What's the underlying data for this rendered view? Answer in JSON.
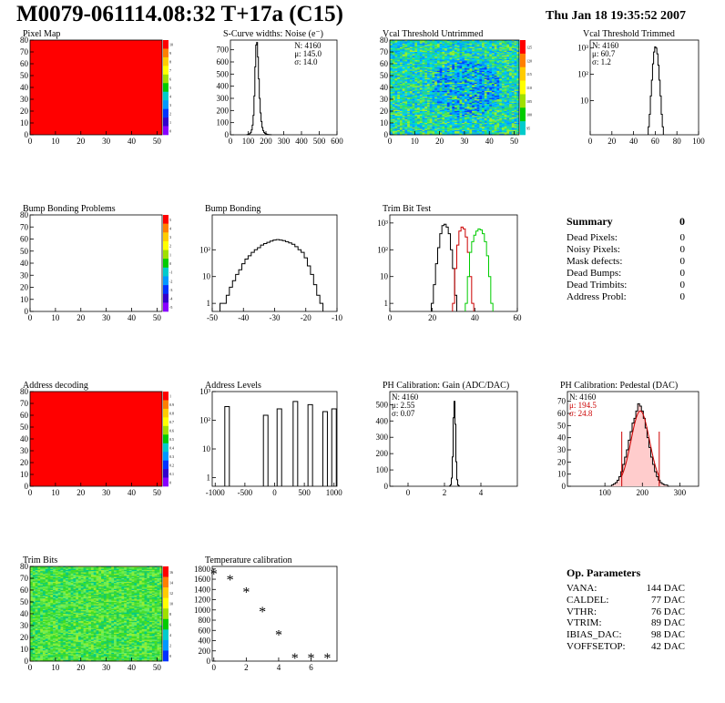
{
  "title": "M0079-061114.08:32 T+17a (C15)",
  "date": "Thu Jan 18 19:35:52 2007",
  "summary": {
    "title": "Summary",
    "value": "0",
    "rows": [
      {
        "label": "Dead Pixels:",
        "value": "0"
      },
      {
        "label": "Noisy Pixels:",
        "value": "0"
      },
      {
        "label": "Mask defects:",
        "value": "0"
      },
      {
        "label": "Dead Bumps:",
        "value": "0"
      },
      {
        "label": "Dead Trimbits:",
        "value": "0"
      },
      {
        "label": "Address Probl:",
        "value": "0"
      }
    ]
  },
  "op_params": {
    "title": "Op. Parameters",
    "rows": [
      {
        "label": "VANA:",
        "value": "144 DAC"
      },
      {
        "label": "CALDEL:",
        "value": "77 DAC"
      },
      {
        "label": "VTHR:",
        "value": "76 DAC"
      },
      {
        "label": "VTRIM:",
        "value": "89 DAC"
      },
      {
        "label": "IBIAS_DAC:",
        "value": "98 DAC"
      },
      {
        "label": "VOFFSETOP:",
        "value": "42 DAC"
      }
    ]
  },
  "colors": {
    "red": "#ff0000",
    "black": "#000000",
    "green": "#00cc00",
    "frame": "#000000"
  },
  "chart_data": [
    {
      "id": "pixel-map",
      "type": "heatmap",
      "title": "Pixel Map",
      "pattern": "uniform-red",
      "xlim": [
        0,
        52
      ],
      "ylim": [
        0,
        80
      ],
      "xticks": [
        0,
        10,
        20,
        30,
        40,
        50
      ],
      "yticks": [
        0,
        10,
        20,
        30,
        40,
        50,
        60,
        70,
        80
      ],
      "palette": {
        "labels": [
          "10",
          "9",
          "8",
          "7",
          "6",
          "5",
          "4",
          "3",
          "2",
          "1",
          "0"
        ]
      }
    },
    {
      "id": "scurve",
      "type": "bar",
      "title": "S-Curve widths: Noise (e⁻)",
      "xlim": [
        0,
        600
      ],
      "ylim": [
        0,
        780
      ],
      "xticks": [
        0,
        100,
        200,
        300,
        400,
        500,
        600
      ],
      "yticks": [
        0,
        100,
        200,
        300,
        400,
        500,
        600,
        700
      ],
      "stats": [
        "N: 4160",
        "μ: 145.0",
        "σ: 14.0"
      ],
      "x": [
        95,
        100,
        105,
        110,
        115,
        120,
        125,
        130,
        135,
        140,
        145,
        150,
        155,
        160,
        165,
        170,
        175,
        180,
        185,
        190,
        195,
        200,
        205,
        210,
        215,
        220,
        225,
        230
      ],
      "values": [
        1,
        3,
        5,
        10,
        20,
        40,
        80,
        160,
        320,
        560,
        740,
        760,
        640,
        460,
        300,
        180,
        110,
        60,
        35,
        20,
        12,
        8,
        5,
        3,
        2,
        1,
        1,
        0
      ]
    },
    {
      "id": "vcal-untrimmed",
      "type": "heatmap",
      "title": "Vcal Threshold Untrimmed",
      "pattern": "noise-blue-center",
      "xlim": [
        0,
        52
      ],
      "ylim": [
        0,
        80
      ],
      "xticks": [
        0,
        10,
        20,
        30,
        40,
        50
      ],
      "yticks": [
        0,
        10,
        20,
        30,
        40,
        50,
        60,
        70,
        80
      ],
      "palette": {
        "labels": [
          "125",
          "120",
          "115",
          "110",
          "105",
          "100",
          "95"
        ]
      }
    },
    {
      "id": "vcal-trimmed",
      "type": "bar",
      "title": "Vcal Threshold Trimmed",
      "log": true,
      "xlim": [
        0,
        100
      ],
      "ylim": [
        0.5,
        2000
      ],
      "xticks": [
        0,
        20,
        40,
        60,
        80,
        100
      ],
      "yticks": [
        10,
        100,
        1000
      ],
      "stats": [
        "N: 4160",
        "μ: 60.7",
        "σ:  1.2"
      ],
      "x": [
        54,
        55,
        56,
        57,
        58,
        59,
        60,
        61,
        62,
        63,
        64,
        65,
        66,
        67
      ],
      "values": [
        1,
        3,
        15,
        60,
        250,
        700,
        1100,
        1000,
        600,
        220,
        60,
        15,
        3,
        1
      ]
    },
    {
      "id": "bump-problems",
      "type": "heatmap",
      "title": "Bump Bonding Problems",
      "pattern": "empty",
      "xlim": [
        0,
        52
      ],
      "ylim": [
        0,
        80
      ],
      "xticks": [
        0,
        10,
        20,
        30,
        40,
        50
      ],
      "yticks": [
        0,
        10,
        20,
        30,
        40,
        50,
        60,
        70,
        80
      ],
      "palette": {
        "labels": [
          "5",
          "4",
          "3",
          "2",
          "1",
          "0",
          "-1",
          "-2",
          "-3",
          "-4",
          "-5"
        ]
      }
    },
    {
      "id": "bump-bonding",
      "type": "bar",
      "title": "Bump Bonding",
      "log": true,
      "xlim": [
        -50,
        -10
      ],
      "ylim": [
        0.5,
        2000
      ],
      "xticks": [
        -50,
        -40,
        -30,
        -20,
        -10
      ],
      "yticks": [
        1,
        10,
        100
      ],
      "x": [
        -47,
        -46,
        -45,
        -44,
        -43,
        -42,
        -41,
        -40,
        -39,
        -38,
        -37,
        -36,
        -35,
        -34,
        -33,
        -32,
        -31,
        -30,
        -29,
        -28,
        -27,
        -26,
        -25,
        -24,
        -23,
        -22,
        -21,
        -20,
        -19,
        -18,
        -17,
        -16,
        -15
      ],
      "values": [
        1,
        1,
        2,
        4,
        7,
        12,
        18,
        30,
        45,
        60,
        80,
        100,
        120,
        150,
        170,
        190,
        210,
        230,
        240,
        230,
        220,
        200,
        180,
        160,
        130,
        100,
        80,
        50,
        25,
        12,
        5,
        2,
        1
      ]
    },
    {
      "id": "trim-bit-test",
      "type": "line",
      "title": "Trim Bit Test",
      "log": true,
      "xlim": [
        0,
        60
      ],
      "ylim": [
        0.5,
        2000
      ],
      "xticks": [
        0,
        20,
        40,
        60
      ],
      "yticks": [
        1,
        10,
        100,
        1000
      ],
      "series": [
        {
          "color": "#000000",
          "x": [
            20,
            21,
            22,
            23,
            24,
            25,
            26,
            27,
            28,
            29,
            30,
            31
          ],
          "values": [
            1,
            5,
            30,
            120,
            400,
            800,
            900,
            700,
            400,
            100,
            20,
            2
          ]
        },
        {
          "color": "#cc0000",
          "x": [
            30,
            31,
            32,
            33,
            34,
            35,
            36,
            37,
            38,
            39
          ],
          "values": [
            1,
            20,
            150,
            500,
            700,
            600,
            300,
            80,
            10,
            1
          ]
        },
        {
          "color": "#00cc00",
          "x": [
            36,
            37,
            38,
            39,
            40,
            41,
            42,
            43,
            44,
            45,
            46,
            47,
            48
          ],
          "values": [
            1,
            10,
            80,
            200,
            350,
            500,
            600,
            550,
            400,
            200,
            60,
            10,
            1
          ]
        }
      ]
    },
    {
      "id": "address-decoding",
      "type": "heatmap",
      "title": "Address decoding",
      "pattern": "uniform-red",
      "xlim": [
        0,
        52
      ],
      "ylim": [
        0,
        80
      ],
      "xticks": [
        0,
        10,
        20,
        30,
        40,
        50
      ],
      "yticks": [
        0,
        10,
        20,
        30,
        40,
        50,
        60,
        70,
        80
      ],
      "palette": {
        "labels": [
          "1",
          "0.9",
          "0.8",
          "0.7",
          "0.6",
          "0.5",
          "0.4",
          "0.3",
          "0.2",
          "0.1",
          "0"
        ]
      }
    },
    {
      "id": "address-levels",
      "type": "bar",
      "title": "Address Levels",
      "log": true,
      "xlim": [
        -1050,
        1050
      ],
      "ylim": [
        0.5,
        1000
      ],
      "xticks": [
        -1000,
        -500,
        0,
        500,
        1000
      ],
      "yticks": [
        1,
        10,
        100,
        1000
      ],
      "peaks": [
        {
          "center": -800,
          "height": 300
        },
        {
          "center": -150,
          "height": 150
        },
        {
          "center": 80,
          "height": 250
        },
        {
          "center": 350,
          "height": 450
        },
        {
          "center": 600,
          "height": 350
        },
        {
          "center": 850,
          "height": 200
        },
        {
          "center": 1000,
          "height": 250
        }
      ]
    },
    {
      "id": "ph-gain",
      "type": "bar",
      "title": "PH Calibration: Gain (ADC/DAC)",
      "xlim": [
        -1,
        6
      ],
      "ylim": [
        0,
        580
      ],
      "xticks": [
        0,
        2,
        4
      ],
      "yticks": [
        0,
        100,
        200,
        300,
        400,
        500
      ],
      "stats": [
        "N: 4160",
        "μ: 2.55",
        "σ: 0.07"
      ],
      "x": [
        2.3,
        2.35,
        2.4,
        2.45,
        2.5,
        2.55,
        2.6,
        2.65,
        2.7,
        2.75,
        2.8
      ],
      "values": [
        2,
        10,
        50,
        180,
        420,
        520,
        380,
        150,
        40,
        8,
        2
      ]
    },
    {
      "id": "ph-pedestal",
      "type": "bar",
      "title": "PH Calibration: Pedestal (DAC)",
      "xlim": [
        0,
        350
      ],
      "ylim": [
        0,
        78
      ],
      "xticks": [
        100,
        200,
        300
      ],
      "yticks": [
        0,
        10,
        20,
        30,
        40,
        50,
        60,
        70
      ],
      "stats": [
        "N: 4160"
      ],
      "fit_stats": [
        "μ: 194.5",
        "σ: 24.8"
      ],
      "x": [
        120,
        125,
        130,
        135,
        140,
        145,
        150,
        155,
        160,
        165,
        170,
        175,
        180,
        185,
        190,
        195,
        200,
        205,
        210,
        215,
        220,
        225,
        230,
        235,
        240,
        245,
        250,
        255,
        260,
        265,
        270
      ],
      "values": [
        1,
        2,
        3,
        5,
        8,
        12,
        18,
        24,
        30,
        38,
        45,
        52,
        56,
        62,
        68,
        66,
        62,
        56,
        48,
        40,
        32,
        24,
        18,
        12,
        8,
        5,
        3,
        2,
        1,
        1,
        0
      ],
      "fit": {
        "mean": 194.5,
        "sigma": 24.8,
        "peak": 62,
        "range": [
          145,
          245
        ]
      }
    },
    {
      "id": "trim-bits",
      "type": "heatmap",
      "title": "Trim Bits",
      "pattern": "noise-green",
      "xlim": [
        0,
        52
      ],
      "ylim": [
        0,
        80
      ],
      "xticks": [
        0,
        10,
        20,
        30,
        40,
        50
      ],
      "yticks": [
        0,
        10,
        20,
        30,
        40,
        50,
        60,
        70,
        80
      ],
      "palette": {
        "labels": [
          "16",
          "14",
          "12",
          "10",
          "8",
          "6",
          "4",
          "2",
          "0"
        ]
      }
    },
    {
      "id": "temperature",
      "type": "scatter",
      "title": "Temperature calibration",
      "xlim": [
        -0.1,
        7.6
      ],
      "ylim": [
        0,
        1850
      ],
      "xticks": [
        0,
        2,
        4,
        6
      ],
      "yticks": [
        0,
        200,
        400,
        600,
        800,
        1000,
        1200,
        1400,
        1600,
        1800
      ],
      "x": [
        0,
        1,
        2,
        3,
        4,
        5,
        6,
        7
      ],
      "values": [
        1700,
        1580,
        1340,
        960,
        510,
        50,
        50,
        50
      ]
    }
  ]
}
